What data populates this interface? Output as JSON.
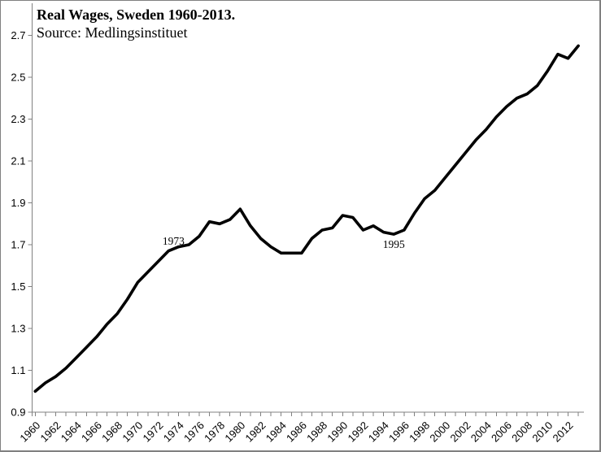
{
  "window": {
    "background": "#ffffff",
    "border_color": "#808080"
  },
  "header": {
    "title": "Real Wages, Sweden 1960-2013.",
    "subtitle": "Source: Medlingsinstituet"
  },
  "chart_data": {
    "type": "line",
    "title": "Real Wages, Sweden 1960-2013.",
    "subtitle": "Source: Medlingsinstituet",
    "xlabel": "",
    "ylabel": "",
    "ylim": [
      0.9,
      2.7
    ],
    "y_ticks": [
      0.9,
      1.1,
      1.3,
      1.5,
      1.7,
      1.9,
      2.1,
      2.3,
      2.5,
      2.7
    ],
    "x_tick_label_step": 2,
    "grid": false,
    "legend": false,
    "line_color": "#000000",
    "line_width": 3.6,
    "axis_color": "#808080",
    "tick_label_color": "#000000",
    "years": [
      1960,
      1961,
      1962,
      1963,
      1964,
      1965,
      1966,
      1967,
      1968,
      1969,
      1970,
      1971,
      1972,
      1973,
      1974,
      1975,
      1976,
      1977,
      1978,
      1979,
      1980,
      1981,
      1982,
      1983,
      1984,
      1985,
      1986,
      1987,
      1988,
      1989,
      1990,
      1991,
      1992,
      1993,
      1994,
      1995,
      1996,
      1997,
      1998,
      1999,
      2000,
      2001,
      2002,
      2003,
      2004,
      2005,
      2006,
      2007,
      2008,
      2009,
      2010,
      2011,
      2012,
      2013
    ],
    "values": [
      1.0,
      1.04,
      1.07,
      1.11,
      1.16,
      1.21,
      1.26,
      1.32,
      1.37,
      1.44,
      1.52,
      1.57,
      1.62,
      1.67,
      1.69,
      1.7,
      1.74,
      1.81,
      1.8,
      1.82,
      1.87,
      1.79,
      1.73,
      1.69,
      1.66,
      1.66,
      1.66,
      1.73,
      1.77,
      1.78,
      1.84,
      1.83,
      1.77,
      1.79,
      1.76,
      1.75,
      1.77,
      1.85,
      1.92,
      1.96,
      2.02,
      2.08,
      2.14,
      2.2,
      2.25,
      2.31,
      2.36,
      2.4,
      2.42,
      2.46,
      2.53,
      2.61,
      2.59,
      2.65
    ],
    "annotations": [
      {
        "text": "1973",
        "label_year": 1973.5,
        "label_value": 1.715
      },
      {
        "text": "1995",
        "label_year": 1995.0,
        "label_value": 1.7
      }
    ]
  }
}
